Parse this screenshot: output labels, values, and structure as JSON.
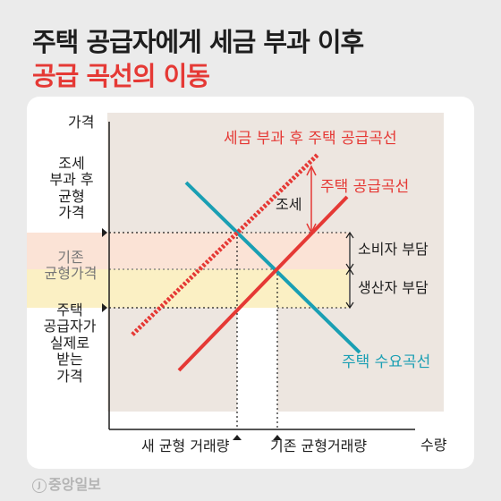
{
  "title": {
    "line1": "주택 공급자에게 세금 부과 이후",
    "line2": "공급 곡선의 이동"
  },
  "colors": {
    "accent_red": "#e53935",
    "teal": "#1a9fb3",
    "consumer_band": "#fbe3d6",
    "producer_band": "#fbf0c4"
  },
  "axes": {
    "y_label": "가격",
    "x_label": "수량"
  },
  "left_labels": {
    "new_price": [
      "조세",
      "부과 후",
      "균형",
      "가격"
    ],
    "old_price": [
      "기존",
      "균형가격"
    ],
    "seller_price": [
      "주택",
      "공급자가",
      "실제로",
      "받는",
      "가격"
    ]
  },
  "curve_labels": {
    "taxed_supply": "세금 부과 후 주택 공급곡선",
    "supply": "주택 공급곡선",
    "demand": "주택 수요곡선"
  },
  "annotations": {
    "tax": "조세",
    "consumer_burden": "소비자 부담",
    "producer_burden": "생산자 부담"
  },
  "bottom_labels": {
    "new_quantity": "새 균형 거래량",
    "old_quantity": "기존 균형거래량"
  },
  "logo": {
    "mark": "J",
    "text": "중앙일보"
  },
  "icons": [
    "arrow-right-marker-icon",
    "arrow-up-marker-icon",
    "tax-double-arrow-icon"
  ]
}
